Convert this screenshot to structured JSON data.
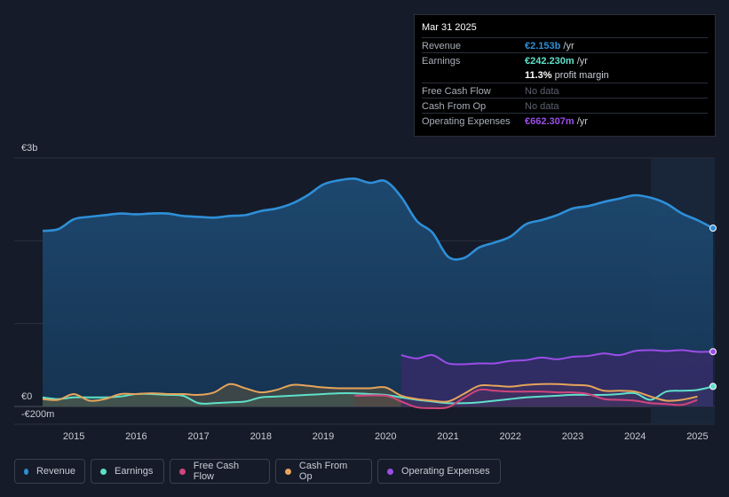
{
  "tooltip": {
    "date": "Mar 31 2025",
    "rows": [
      {
        "label": "Revenue",
        "value": "€2.153b",
        "suffix": " /yr",
        "color": "#2e8fd8"
      },
      {
        "label": "Earnings",
        "value": "€242.230m",
        "suffix": " /yr",
        "color": "#5ee0c9"
      },
      {
        "label": "",
        "value": "11.3%",
        "suffix": " profit margin",
        "color": "#ffffff"
      },
      {
        "label": "Free Cash Flow",
        "value": "No data",
        "suffix": "",
        "color": "#5c6270"
      },
      {
        "label": "Cash From Op",
        "value": "No data",
        "suffix": "",
        "color": "#5c6270"
      },
      {
        "label": "Operating Expenses",
        "value": "€662.307m",
        "suffix": " /yr",
        "color": "#9b4de8"
      }
    ]
  },
  "legend": [
    {
      "label": "Revenue",
      "color": "#2e8fd8"
    },
    {
      "label": "Earnings",
      "color": "#5ee0c9"
    },
    {
      "label": "Free Cash Flow",
      "color": "#d0457c"
    },
    {
      "label": "Cash From Op",
      "color": "#e5a45c"
    },
    {
      "label": "Operating Expenses",
      "color": "#9b4de8"
    }
  ],
  "chart_data": {
    "type": "area",
    "y_labels": [
      "€3b",
      "€0",
      "-€200m"
    ],
    "ylim": [
      -200,
      3000
    ],
    "xlim": [
      2014.5,
      2025.25
    ],
    "x_ticks": [
      "2015",
      "2016",
      "2017",
      "2018",
      "2019",
      "2020",
      "2021",
      "2022",
      "2023",
      "2024",
      "2025"
    ],
    "units": "€m",
    "series": [
      {
        "name": "Revenue",
        "color": "#2e8fd8",
        "points": [
          [
            2014.5,
            2120
          ],
          [
            2014.75,
            2140
          ],
          [
            2015.0,
            2260
          ],
          [
            2015.25,
            2290
          ],
          [
            2015.5,
            2310
          ],
          [
            2015.75,
            2330
          ],
          [
            2016.0,
            2320
          ],
          [
            2016.25,
            2330
          ],
          [
            2016.5,
            2330
          ],
          [
            2016.75,
            2300
          ],
          [
            2017.0,
            2290
          ],
          [
            2017.25,
            2280
          ],
          [
            2017.5,
            2300
          ],
          [
            2017.75,
            2310
          ],
          [
            2018.0,
            2360
          ],
          [
            2018.25,
            2390
          ],
          [
            2018.5,
            2450
          ],
          [
            2018.75,
            2550
          ],
          [
            2019.0,
            2680
          ],
          [
            2019.25,
            2730
          ],
          [
            2019.5,
            2750
          ],
          [
            2019.75,
            2700
          ],
          [
            2020.0,
            2720
          ],
          [
            2020.25,
            2530
          ],
          [
            2020.5,
            2240
          ],
          [
            2020.75,
            2100
          ],
          [
            2021.0,
            1810
          ],
          [
            2021.25,
            1790
          ],
          [
            2021.5,
            1920
          ],
          [
            2021.75,
            1980
          ],
          [
            2022.0,
            2050
          ],
          [
            2022.25,
            2200
          ],
          [
            2022.5,
            2250
          ],
          [
            2022.75,
            2310
          ],
          [
            2023.0,
            2390
          ],
          [
            2023.25,
            2420
          ],
          [
            2023.5,
            2470
          ],
          [
            2023.75,
            2510
          ],
          [
            2024.0,
            2550
          ],
          [
            2024.25,
            2520
          ],
          [
            2024.5,
            2450
          ],
          [
            2024.75,
            2330
          ],
          [
            2025.0,
            2250
          ],
          [
            2025.25,
            2153
          ]
        ]
      },
      {
        "name": "Earnings",
        "color": "#5ee0c9",
        "points": [
          [
            2014.5,
            110
          ],
          [
            2014.75,
            90
          ],
          [
            2015.0,
            110
          ],
          [
            2015.25,
            110
          ],
          [
            2015.5,
            110
          ],
          [
            2015.75,
            120
          ],
          [
            2016.0,
            150
          ],
          [
            2016.25,
            150
          ],
          [
            2016.5,
            140
          ],
          [
            2016.75,
            130
          ],
          [
            2017.0,
            40
          ],
          [
            2017.25,
            40
          ],
          [
            2017.5,
            50
          ],
          [
            2017.75,
            60
          ],
          [
            2018.0,
            110
          ],
          [
            2018.25,
            120
          ],
          [
            2018.5,
            130
          ],
          [
            2018.75,
            140
          ],
          [
            2019.0,
            150
          ],
          [
            2019.25,
            160
          ],
          [
            2019.5,
            160
          ],
          [
            2019.75,
            150
          ],
          [
            2020.0,
            140
          ],
          [
            2020.25,
            110
          ],
          [
            2020.5,
            80
          ],
          [
            2020.75,
            60
          ],
          [
            2021.0,
            40
          ],
          [
            2021.25,
            40
          ],
          [
            2021.5,
            50
          ],
          [
            2021.75,
            70
          ],
          [
            2022.0,
            90
          ],
          [
            2022.25,
            110
          ],
          [
            2022.5,
            120
          ],
          [
            2022.75,
            130
          ],
          [
            2023.0,
            140
          ],
          [
            2023.25,
            140
          ],
          [
            2023.5,
            140
          ],
          [
            2023.75,
            150
          ],
          [
            2024.0,
            160
          ],
          [
            2024.25,
            80
          ],
          [
            2024.5,
            180
          ],
          [
            2024.75,
            190
          ],
          [
            2025.0,
            200
          ],
          [
            2025.25,
            242
          ]
        ]
      },
      {
        "name": "Free Cash Flow",
        "color": "#d0457c",
        "points": [
          [
            2019.5,
            130
          ],
          [
            2020.0,
            130
          ],
          [
            2020.25,
            60
          ],
          [
            2020.5,
            -10
          ],
          [
            2020.75,
            -20
          ],
          [
            2021.0,
            -10
          ],
          [
            2021.25,
            100
          ],
          [
            2021.5,
            200
          ],
          [
            2021.75,
            190
          ],
          [
            2022.0,
            180
          ],
          [
            2022.25,
            180
          ],
          [
            2022.5,
            180
          ],
          [
            2022.75,
            170
          ],
          [
            2023.0,
            170
          ],
          [
            2023.25,
            150
          ],
          [
            2023.5,
            90
          ],
          [
            2023.75,
            80
          ],
          [
            2024.0,
            70
          ],
          [
            2024.25,
            40
          ],
          [
            2024.5,
            30
          ],
          [
            2024.75,
            20
          ],
          [
            2025.0,
            80
          ]
        ]
      },
      {
        "name": "Cash From Op",
        "color": "#e5a45c",
        "points": [
          [
            2014.5,
            90
          ],
          [
            2014.75,
            80
          ],
          [
            2015.0,
            150
          ],
          [
            2015.25,
            70
          ],
          [
            2015.5,
            90
          ],
          [
            2015.75,
            150
          ],
          [
            2016.0,
            150
          ],
          [
            2016.25,
            160
          ],
          [
            2016.5,
            150
          ],
          [
            2016.75,
            150
          ],
          [
            2017.0,
            140
          ],
          [
            2017.25,
            170
          ],
          [
            2017.5,
            270
          ],
          [
            2017.75,
            220
          ],
          [
            2018.0,
            170
          ],
          [
            2018.25,
            200
          ],
          [
            2018.5,
            260
          ],
          [
            2018.75,
            250
          ],
          [
            2019.0,
            230
          ],
          [
            2019.25,
            220
          ],
          [
            2019.5,
            220
          ],
          [
            2019.75,
            220
          ],
          [
            2020.0,
            230
          ],
          [
            2020.25,
            130
          ],
          [
            2020.5,
            90
          ],
          [
            2020.75,
            70
          ],
          [
            2021.0,
            60
          ],
          [
            2021.25,
            150
          ],
          [
            2021.5,
            250
          ],
          [
            2021.75,
            250
          ],
          [
            2022.0,
            240
          ],
          [
            2022.25,
            260
          ],
          [
            2022.5,
            270
          ],
          [
            2022.75,
            270
          ],
          [
            2023.0,
            260
          ],
          [
            2023.25,
            250
          ],
          [
            2023.5,
            190
          ],
          [
            2023.75,
            190
          ],
          [
            2024.0,
            180
          ],
          [
            2024.25,
            120
          ],
          [
            2024.5,
            70
          ],
          [
            2024.75,
            80
          ],
          [
            2025.0,
            120
          ]
        ]
      },
      {
        "name": "Operating Expenses",
        "color": "#9b4de8",
        "points": [
          [
            2020.25,
            620
          ],
          [
            2020.5,
            580
          ],
          [
            2020.75,
            620
          ],
          [
            2021.0,
            520
          ],
          [
            2021.25,
            510
          ],
          [
            2021.5,
            520
          ],
          [
            2021.75,
            520
          ],
          [
            2022.0,
            550
          ],
          [
            2022.25,
            560
          ],
          [
            2022.5,
            590
          ],
          [
            2022.75,
            570
          ],
          [
            2023.0,
            600
          ],
          [
            2023.25,
            610
          ],
          [
            2023.5,
            640
          ],
          [
            2023.75,
            620
          ],
          [
            2024.0,
            670
          ],
          [
            2024.25,
            680
          ],
          [
            2024.5,
            670
          ],
          [
            2024.75,
            680
          ],
          [
            2025.0,
            660
          ],
          [
            2025.25,
            662
          ]
        ]
      }
    ]
  }
}
